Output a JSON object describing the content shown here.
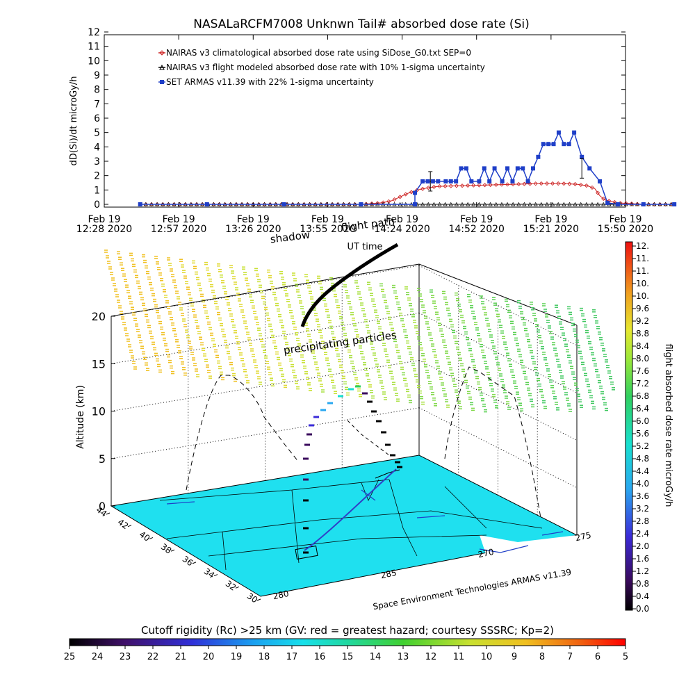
{
  "header": {
    "title": "NASALaRCFM7008   Unknwn Tail#   absorbed dose rate (Si)"
  },
  "chart_data": [
    {
      "type": "line",
      "name": "dose-timeline",
      "title": "NASALaRCFM7008   Unknwn Tail#   absorbed dose rate (Si)",
      "ylabel": "dD(Si)/dt microGy/h",
      "xlabel": "",
      "ylim": [
        0,
        12
      ],
      "yticks": [
        0,
        1,
        2,
        3,
        4,
        5,
        6,
        7,
        8,
        9,
        10,
        11,
        12
      ],
      "xlim_minutes": [
        0,
        202
      ],
      "xtick_minutes": [
        0,
        29,
        58,
        87,
        116,
        145,
        174,
        203
      ],
      "xtick_labels": [
        [
          "Feb 19",
          "12:28 2020"
        ],
        [
          "Feb 19",
          "12:57 2020"
        ],
        [
          "Feb 19",
          "13:26 2020"
        ],
        [
          "Feb 19",
          "13:55 2020"
        ],
        [
          "Feb 19",
          "14:24 2020"
        ],
        [
          "Feb 19",
          "14:52 2020"
        ],
        [
          "Feb 19",
          "15:21 2020"
        ],
        [
          "Feb 19",
          "15:50 2020"
        ]
      ],
      "legend_position": "top-left",
      "series": [
        {
          "name": "NAIRAS v3 climatological absorbed dose rate using SiDose_G0.txt SEP=0",
          "color": "#cc2222",
          "marker": "diamond",
          "x": [
            14,
            40,
            70,
            100,
            108,
            112,
            115,
            118,
            122,
            126,
            130,
            140,
            150,
            160,
            170,
            178,
            184,
            188,
            191,
            193,
            195,
            200,
            210,
            222
          ],
          "y": [
            0,
            0,
            0,
            0,
            0.1,
            0.25,
            0.5,
            0.75,
            1.0,
            1.15,
            1.25,
            1.3,
            1.35,
            1.4,
            1.45,
            1.45,
            1.4,
            1.3,
            1.1,
            0.6,
            0.3,
            0.1,
            0,
            0
          ]
        },
        {
          "name": "NAIRAS v3 flight modeled absorbed dose rate with 10% 1-sigma uncertainty",
          "color": "#000000",
          "marker": "triangle",
          "x": [
            14,
            50,
            100,
            150,
            200,
            222
          ],
          "y": [
            0,
            0,
            0,
            0,
            0,
            0
          ]
        },
        {
          "name": "SET ARMAS v11.39 with 22% 1-sigma uncertainty",
          "color": "#1f3fc8",
          "marker": "square",
          "x": [
            14,
            40,
            70,
            100,
            121,
            121,
            124,
            126,
            128,
            130,
            133,
            135,
            137,
            139,
            141,
            143,
            146,
            148,
            150,
            152,
            155,
            157,
            159,
            161,
            163,
            165,
            167,
            169,
            171,
            173,
            175,
            177,
            179,
            181,
            183,
            186,
            189,
            193,
            196,
            200,
            210,
            222
          ],
          "y": [
            0,
            0,
            0,
            0,
            0,
            0.8,
            1.6,
            1.6,
            1.6,
            1.6,
            1.6,
            1.6,
            1.6,
            2.5,
            2.5,
            1.6,
            1.6,
            2.5,
            1.6,
            2.5,
            1.6,
            2.5,
            1.6,
            2.5,
            2.5,
            1.6,
            2.5,
            3.3,
            4.2,
            4.2,
            4.2,
            5.0,
            4.2,
            4.2,
            5.0,
            3.3,
            2.5,
            1.6,
            0.1,
            0,
            0,
            0
          ]
        }
      ]
    },
    {
      "type": "scatter",
      "name": "flight-3d-profile",
      "zlabel": "Altitude (km)",
      "zlim": [
        0,
        20
      ],
      "zticks": [
        0,
        5,
        10,
        15,
        20
      ],
      "lat_ticks": [
        44,
        42,
        40,
        38,
        36,
        34,
        32,
        30
      ],
      "lon_ticks": [
        280,
        285,
        270,
        275
      ],
      "annotations": [
        "precipitating particles",
        "shadow",
        "flight path",
        "UT time"
      ],
      "credit": "Space Environment Technologies ARMAS v11.39",
      "colorbar": {
        "label": "flight absorbed dose rate microGy/h",
        "range": [
          0,
          12
        ],
        "tick_labels": [
          "12.",
          "11.",
          "11.",
          "10.",
          "10.",
          "9.6",
          "9.2",
          "8.8",
          "8.4",
          "8.0",
          "7.6",
          "7.2",
          "6.8",
          "6.4",
          "6.0",
          "5.6",
          "5.2",
          "4.8",
          "4.4",
          "4.0",
          "3.6",
          "3.2",
          "2.8",
          "2.4",
          "2.0",
          "1.6",
          "1.2",
          "0.8",
          "0.4",
          "0.0"
        ]
      },
      "flight_track": {
        "description_points": [
          {
            "alt_km": 0.2,
            "dose": 0.2
          },
          {
            "alt_km": 6,
            "dose": 0.5
          },
          {
            "alt_km": 11,
            "dose": 2.0
          },
          {
            "alt_km": 12.5,
            "dose": 4.0
          },
          {
            "alt_km": 11.5,
            "dose": 0.8
          },
          {
            "alt_km": 6,
            "dose": 0.1
          },
          {
            "alt_km": 5,
            "dose": 0.1
          }
        ]
      }
    },
    {
      "type": "heatmap",
      "name": "cutoff-rigidity-colorbar",
      "label": "Cutoff rigidity (Rc) >25 km (GV: red = greatest hazard; courtesy SSSRC; Kp=2)",
      "tick_labels": [
        "25",
        "24",
        "23",
        "22",
        "21",
        "20",
        "19",
        "18",
        "17",
        "16",
        "15",
        "14",
        "13",
        "12",
        "11",
        "10",
        "9",
        "8",
        "7",
        "6",
        "5"
      ]
    }
  ],
  "colors": {
    "map_fill": "#1fe0ef",
    "dose_series_blue": "#1f3fc8",
    "nairas_red": "#cc2222"
  }
}
